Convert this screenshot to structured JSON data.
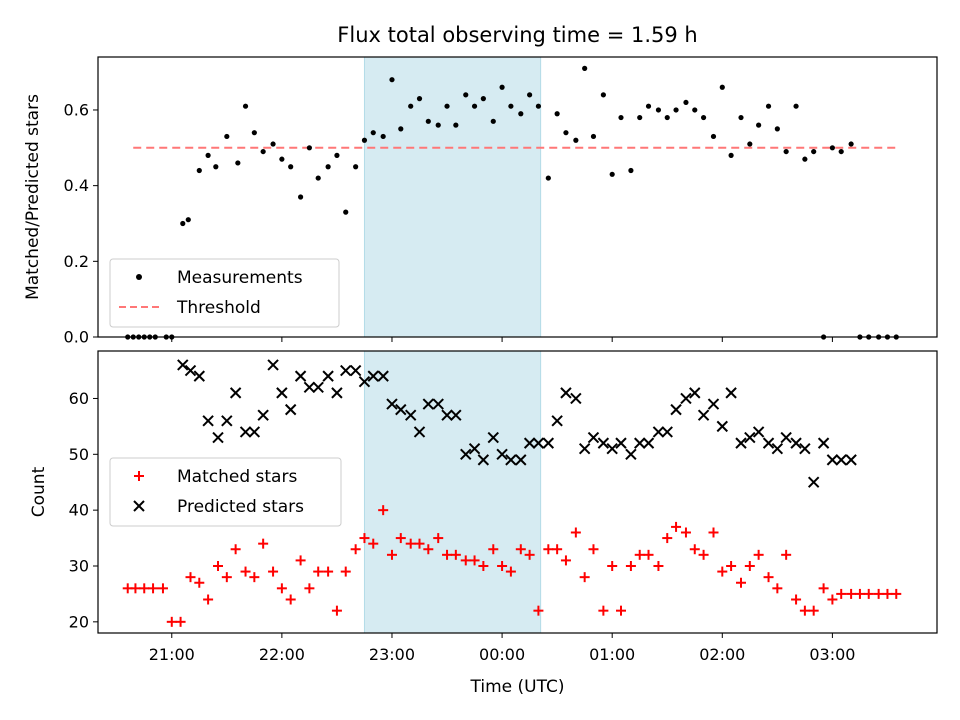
{
  "chart_data": [
    {
      "type": "scatter",
      "title": "Flux total observing time = 1.59 h",
      "xlabel": "",
      "ylabel": "Matched/Predicted stars",
      "ylim": [
        0,
        0.74
      ],
      "yticks": [
        0.0,
        0.2,
        0.4,
        0.6
      ],
      "ytick_labels": [
        "0.0",
        "0.2",
        "0.4",
        "0.6"
      ],
      "xlim": [
        20.33,
        27.95
      ],
      "highlight_span": [
        22.75,
        24.35
      ],
      "highlight_color": "#add8e6",
      "legend": {
        "position": "lower-left",
        "entries": [
          {
            "label": "Measurements",
            "marker": "dot",
            "color": "#000000"
          },
          {
            "label": "Threshold",
            "marker": "dashed-line",
            "color": "#ff7777"
          }
        ]
      },
      "threshold": {
        "name": "Threshold",
        "y": 0.5,
        "x_range": [
          20.65,
          27.6
        ],
        "color": "#ff7777"
      },
      "series": [
        {
          "name": "Measurements",
          "color": "#000000",
          "x": [
            20.6,
            20.65,
            20.7,
            20.75,
            20.8,
            20.85,
            20.95,
            21.0,
            21.1,
            21.15,
            21.25,
            21.33,
            21.4,
            21.5,
            21.6,
            21.67,
            21.75,
            21.83,
            21.92,
            22.0,
            22.08,
            22.17,
            22.25,
            22.33,
            22.42,
            22.5,
            22.58,
            22.67,
            22.75,
            22.83,
            22.92,
            23.0,
            23.08,
            23.17,
            23.25,
            23.33,
            23.42,
            23.5,
            23.58,
            23.67,
            23.75,
            23.83,
            23.92,
            24.0,
            24.08,
            24.17,
            24.25,
            24.33,
            24.42,
            24.5,
            24.58,
            24.67,
            24.75,
            24.83,
            24.92,
            25.0,
            25.08,
            25.17,
            25.25,
            25.33,
            25.42,
            25.5,
            25.58,
            25.67,
            25.75,
            25.83,
            25.92,
            26.0,
            26.08,
            26.17,
            26.25,
            26.33,
            26.42,
            26.5,
            26.58,
            26.67,
            26.75,
            26.83,
            26.92,
            27.0,
            27.08,
            27.17,
            27.25,
            27.33,
            27.42,
            27.5,
            27.58
          ],
          "y": [
            0.0,
            0.0,
            0.0,
            0.0,
            0.0,
            0.0,
            0.0,
            0.0,
            0.3,
            0.31,
            0.44,
            0.48,
            0.45,
            0.53,
            0.46,
            0.61,
            0.54,
            0.49,
            0.51,
            0.47,
            0.45,
            0.37,
            0.5,
            0.42,
            0.45,
            0.48,
            0.33,
            0.45,
            0.52,
            0.54,
            0.53,
            0.68,
            0.55,
            0.61,
            0.63,
            0.57,
            0.56,
            0.61,
            0.56,
            0.64,
            0.61,
            0.63,
            0.57,
            0.66,
            0.61,
            0.59,
            0.64,
            0.61,
            0.42,
            0.59,
            0.54,
            0.52,
            0.71,
            0.53,
            0.64,
            0.43,
            0.58,
            0.44,
            0.58,
            0.61,
            0.6,
            0.58,
            0.6,
            0.62,
            0.6,
            0.58,
            0.53,
            0.66,
            0.48,
            0.58,
            0.51,
            0.56,
            0.61,
            0.55,
            0.49,
            0.61,
            0.47,
            0.49,
            0.0,
            0.5,
            0.49,
            0.51,
            0.0,
            0.0,
            0.0,
            0.0,
            0.0
          ]
        }
      ]
    },
    {
      "type": "scatter",
      "title": "",
      "xlabel": "Time (UTC)",
      "ylabel": "Count",
      "ylim": [
        18.0,
        68.5
      ],
      "yticks": [
        20,
        30,
        40,
        50,
        60
      ],
      "ytick_labels": [
        "20",
        "30",
        "40",
        "50",
        "60"
      ],
      "xlim": [
        20.33,
        27.95
      ],
      "xticks": [
        21,
        22,
        23,
        24,
        25,
        26,
        27
      ],
      "xtick_labels": [
        "21:00",
        "22:00",
        "23:00",
        "00:00",
        "01:00",
        "02:00",
        "03:00"
      ],
      "highlight_span": [
        22.75,
        24.35
      ],
      "highlight_color": "#add8e6",
      "legend": {
        "position": "center-left",
        "entries": [
          {
            "label": "Matched stars",
            "marker": "plus",
            "color": "#ff0000"
          },
          {
            "label": "Predicted stars",
            "marker": "x",
            "color": "#000000"
          }
        ]
      },
      "series": [
        {
          "name": "Matched stars",
          "marker": "plus",
          "color": "#ff0000",
          "x": [
            20.6,
            20.67,
            20.75,
            20.83,
            20.92,
            21.0,
            21.08,
            21.17,
            21.25,
            21.33,
            21.42,
            21.5,
            21.58,
            21.67,
            21.75,
            21.83,
            21.92,
            22.0,
            22.08,
            22.17,
            22.25,
            22.33,
            22.42,
            22.5,
            22.58,
            22.67,
            22.75,
            22.83,
            22.92,
            23.0,
            23.08,
            23.17,
            23.25,
            23.33,
            23.42,
            23.5,
            23.58,
            23.67,
            23.75,
            23.83,
            23.92,
            24.0,
            24.08,
            24.17,
            24.25,
            24.33,
            24.42,
            24.5,
            24.58,
            24.67,
            24.75,
            24.83,
            24.92,
            25.0,
            25.08,
            25.17,
            25.25,
            25.33,
            25.42,
            25.5,
            25.58,
            25.67,
            25.75,
            25.83,
            25.92,
            26.0,
            26.08,
            26.17,
            26.25,
            26.33,
            26.42,
            26.5,
            26.58,
            26.67,
            26.75,
            26.83,
            26.92,
            27.0,
            27.08,
            27.17,
            27.25,
            27.33,
            27.42,
            27.5,
            27.58
          ],
          "y": [
            26,
            26,
            26,
            26,
            26,
            20,
            20,
            28,
            27,
            24,
            30,
            28,
            33,
            29,
            28,
            34,
            29,
            26,
            24,
            31,
            26,
            29,
            29,
            22,
            29,
            33,
            35,
            34,
            40,
            32,
            35,
            34,
            34,
            33,
            35,
            32,
            32,
            31,
            31,
            30,
            33,
            30,
            29,
            33,
            32,
            22,
            33,
            33,
            31,
            36,
            28,
            33,
            22,
            30,
            22,
            30,
            32,
            32,
            30,
            35,
            37,
            36,
            33,
            32,
            36,
            29,
            30,
            27,
            30,
            32,
            28,
            26,
            32,
            24,
            22,
            22,
            26,
            24,
            25,
            25,
            25,
            25,
            25,
            25,
            25
          ]
        },
        {
          "name": "Predicted stars",
          "marker": "x",
          "color": "#000000",
          "x": [
            21.1,
            21.17,
            21.25,
            21.33,
            21.42,
            21.5,
            21.58,
            21.67,
            21.75,
            21.83,
            21.92,
            22.0,
            22.08,
            22.17,
            22.25,
            22.33,
            22.42,
            22.5,
            22.58,
            22.67,
            22.75,
            22.83,
            22.92,
            23.0,
            23.08,
            23.17,
            23.25,
            23.33,
            23.42,
            23.5,
            23.58,
            23.67,
            23.75,
            23.83,
            23.92,
            24.0,
            24.08,
            24.17,
            24.25,
            24.33,
            24.42,
            24.5,
            24.58,
            24.67,
            24.75,
            24.83,
            24.92,
            25.0,
            25.08,
            25.17,
            25.25,
            25.33,
            25.42,
            25.5,
            25.58,
            25.67,
            25.75,
            25.83,
            25.92,
            26.0,
            26.08,
            26.17,
            26.25,
            26.33,
            26.42,
            26.5,
            26.58,
            26.67,
            26.75,
            26.83,
            26.92,
            27.0,
            27.08,
            27.17
          ],
          "y": [
            66,
            65,
            64,
            56,
            53,
            56,
            61,
            54,
            54,
            57,
            66,
            61,
            58,
            64,
            62,
            62,
            64,
            61,
            65,
            65,
            63,
            64,
            64,
            59,
            58,
            57,
            54,
            59,
            59,
            57,
            57,
            50,
            51,
            49,
            53,
            50,
            49,
            49,
            52,
            52,
            52,
            56,
            61,
            60,
            51,
            53,
            52,
            51,
            52,
            50,
            52,
            52,
            54,
            54,
            58,
            60,
            61,
            57,
            59,
            55,
            61,
            52,
            53,
            54,
            52,
            51,
            53,
            52,
            51,
            45,
            52,
            49,
            49,
            49
          ]
        }
      ]
    }
  ]
}
